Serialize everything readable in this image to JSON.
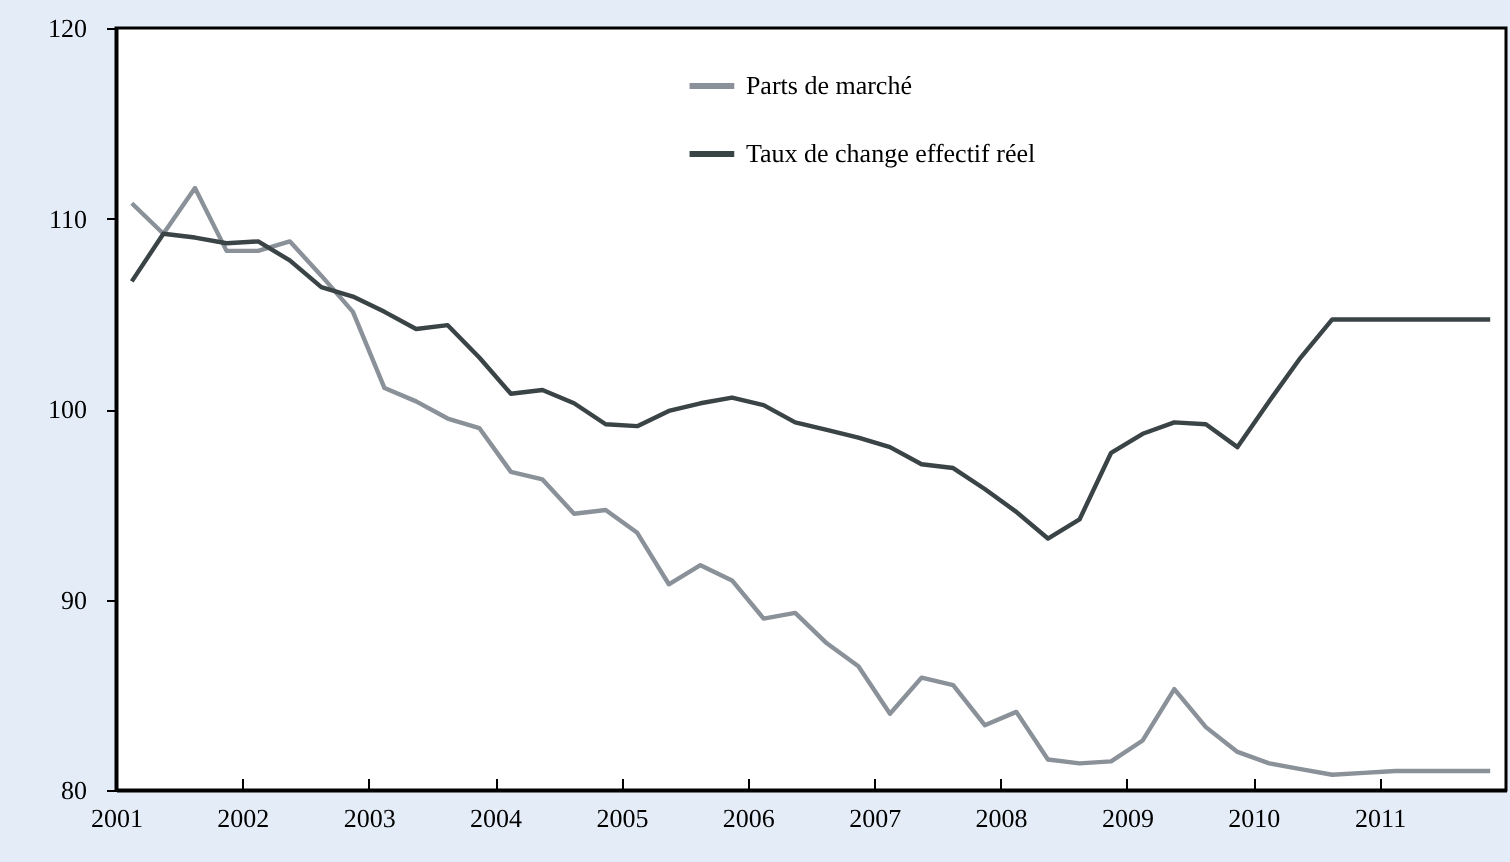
{
  "chart_data": {
    "type": "line",
    "x": [
      2001.125,
      2001.375,
      2001.625,
      2001.875,
      2002.125,
      2002.375,
      2002.625,
      2002.875,
      2003.125,
      2003.375,
      2003.625,
      2003.875,
      2004.125,
      2004.375,
      2004.625,
      2004.875,
      2005.125,
      2005.375,
      2005.625,
      2005.875,
      2006.125,
      2006.375,
      2006.625,
      2006.875,
      2007.125,
      2007.375,
      2007.625,
      2007.875,
      2008.125,
      2008.375,
      2008.625,
      2008.875,
      2009.125,
      2009.375,
      2009.625,
      2009.875,
      2010.125,
      2010.375,
      2010.625,
      2010.875,
      2011.125,
      2011.375,
      2011.625,
      2011.875
    ],
    "series": [
      {
        "name": "Parts de marché",
        "color": "#8a9199",
        "values": [
          110.8,
          109.2,
          111.6,
          108.3,
          108.3,
          108.8,
          107.0,
          105.1,
          101.1,
          100.4,
          99.5,
          99.0,
          96.7,
          96.3,
          94.5,
          94.7,
          93.5,
          90.8,
          91.8,
          91.0,
          89.0,
          89.3,
          87.7,
          86.5,
          84.0,
          85.9,
          85.5,
          83.4,
          84.1,
          81.6,
          81.4,
          81.5,
          82.6,
          85.3,
          83.3,
          82.0,
          81.4,
          81.1,
          80.8,
          80.9,
          81.0,
          81.0,
          81.0,
          81.0
        ]
      },
      {
        "name": "Taux de change effectif réel",
        "color": "#3a4345",
        "values": [
          106.7,
          109.2,
          109.0,
          108.7,
          108.8,
          107.8,
          106.4,
          105.9,
          105.1,
          104.2,
          104.4,
          102.7,
          100.8,
          101.0,
          100.3,
          99.2,
          99.1,
          99.9,
          100.3,
          100.6,
          100.2,
          99.3,
          98.9,
          98.5,
          98.0,
          97.1,
          96.9,
          95.8,
          94.6,
          93.2,
          94.2,
          97.7,
          98.7,
          99.3,
          99.2,
          98.0,
          100.4,
          102.7,
          104.7,
          104.7,
          104.7,
          104.7,
          104.7,
          104.7
        ]
      }
    ],
    "xlim": [
      2001,
      2012
    ],
    "xticks": [
      2001,
      2002,
      2003,
      2004,
      2005,
      2006,
      2007,
      2008,
      2009,
      2010,
      2011
    ],
    "ylim": [
      80,
      120
    ],
    "yticks": [
      80,
      90,
      100,
      110,
      120
    ],
    "grid": false,
    "legend": "top",
    "line_style": "solid",
    "marker": "none"
  }
}
